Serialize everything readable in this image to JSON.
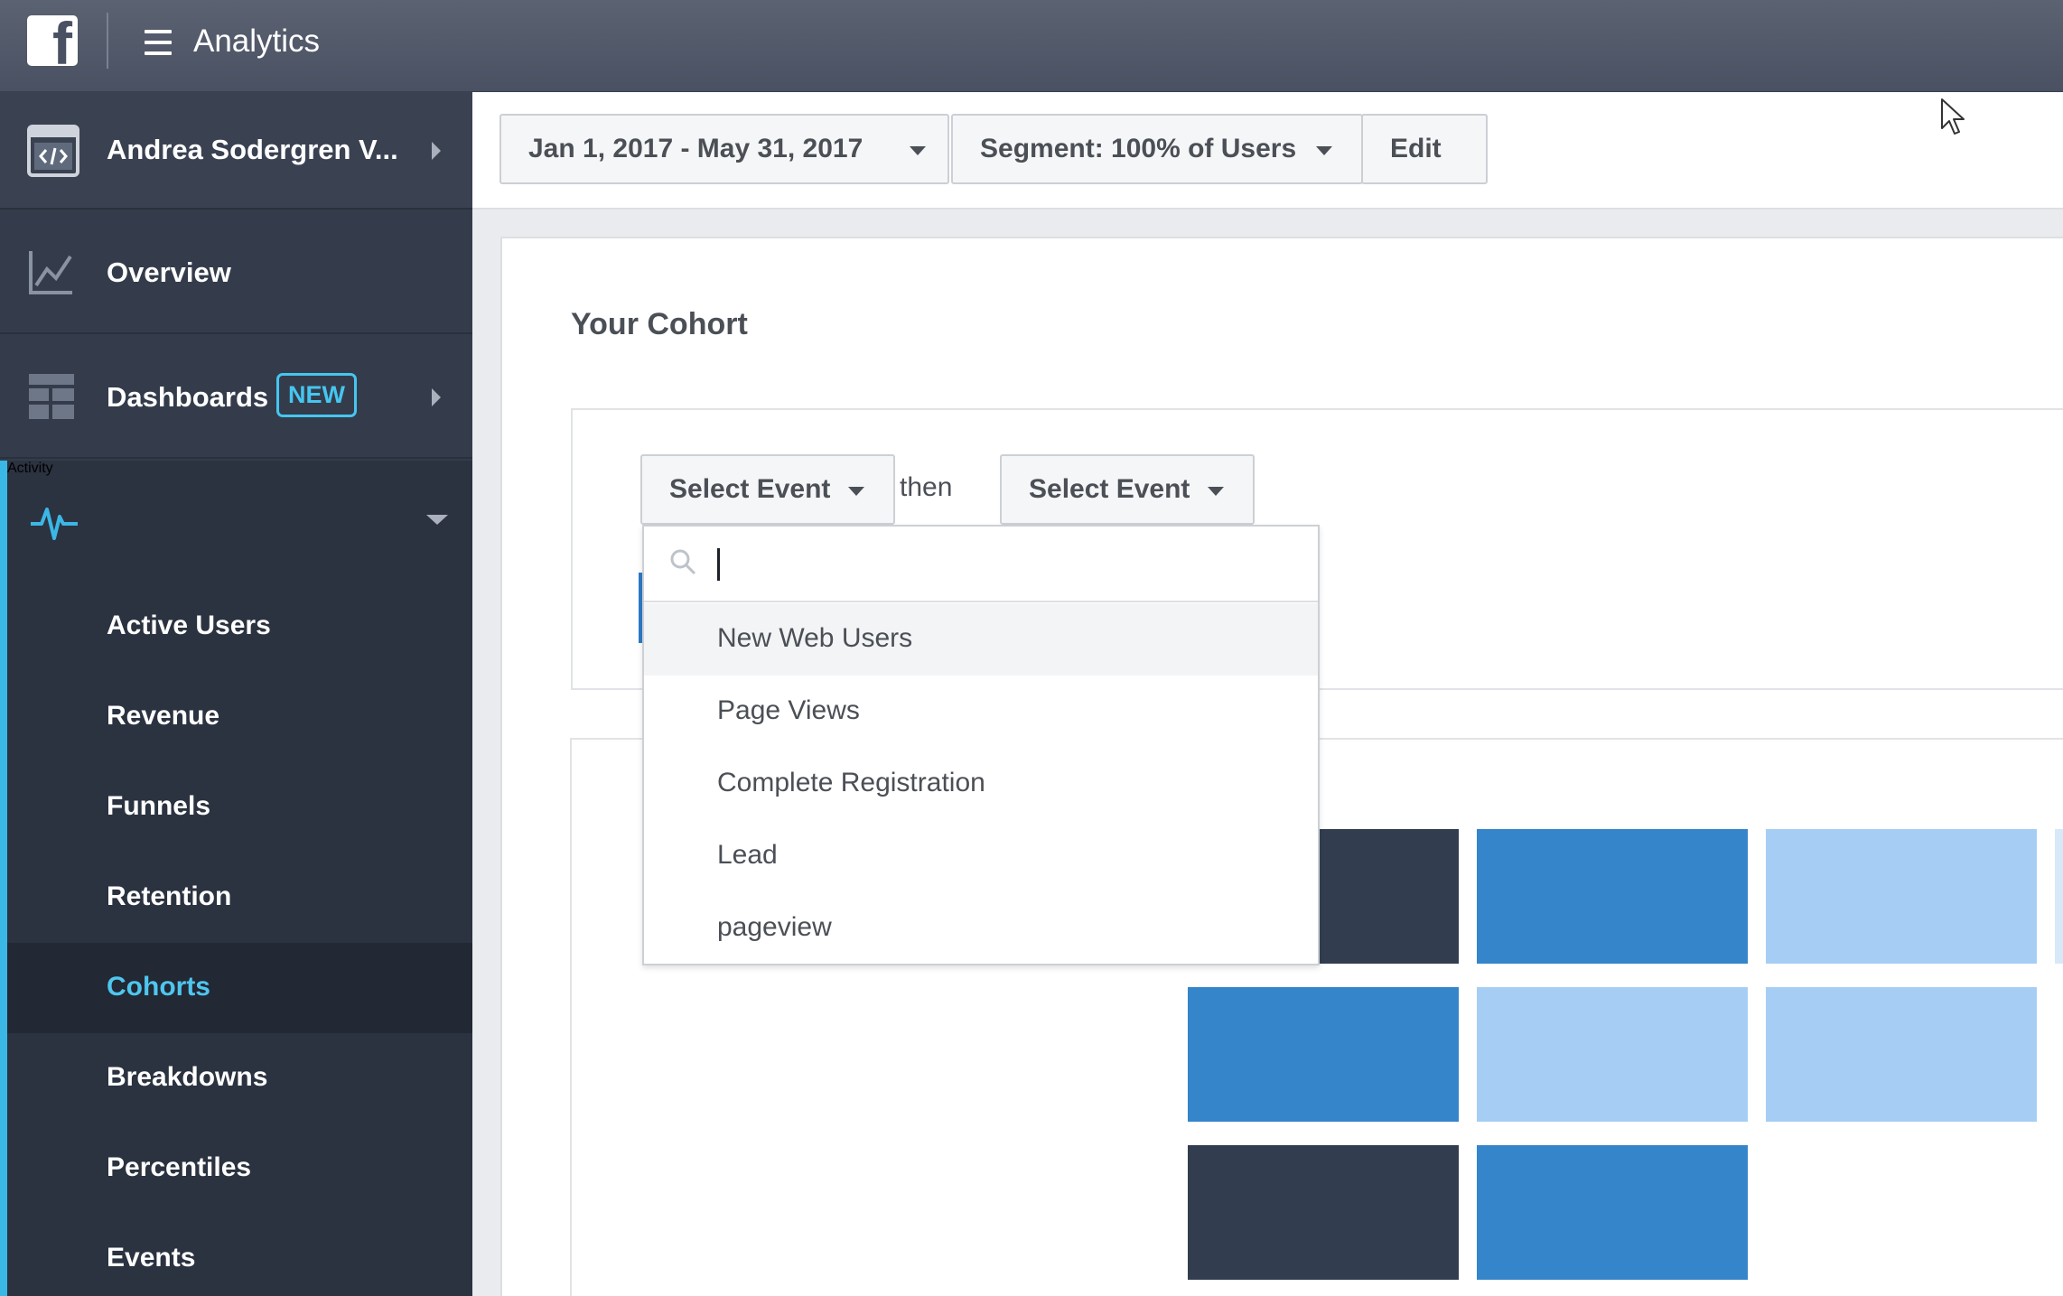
{
  "topbar": {
    "logo_letter": "f",
    "title": "Analytics"
  },
  "sidebar": {
    "app": {
      "name": "Andrea Sodergren V..."
    },
    "overview": {
      "label": "Overview"
    },
    "dashboards": {
      "label": "Dashboards",
      "badge": "NEW"
    },
    "activity": {
      "label": "Activity",
      "items": [
        {
          "label": "Active Users"
        },
        {
          "label": "Revenue"
        },
        {
          "label": "Funnels"
        },
        {
          "label": "Retention"
        },
        {
          "label": "Cohorts"
        },
        {
          "label": "Breakdowns"
        },
        {
          "label": "Percentiles"
        },
        {
          "label": "Events"
        }
      ],
      "active_item": "Cohorts"
    }
  },
  "toolbar": {
    "date_range": "Jan 1, 2017 - May 31, 2017",
    "segment": "Segment: 100% of Users",
    "edit": "Edit"
  },
  "cohort": {
    "title": "Your Cohort",
    "first_event": "Select Event",
    "connector": "then",
    "second_event": "Select Event"
  },
  "dropdown": {
    "search_value": "",
    "options": [
      {
        "label": "New Web Users"
      },
      {
        "label": "Page Views"
      },
      {
        "label": "Complete Registration"
      },
      {
        "label": "Lead"
      },
      {
        "label": "pageview"
      }
    ],
    "highlighted": "New Web Users"
  },
  "colors": {
    "dark": "#323d4f",
    "mid": "#3585ca",
    "light": "#a6cef4",
    "accent": "#45c6f0"
  }
}
